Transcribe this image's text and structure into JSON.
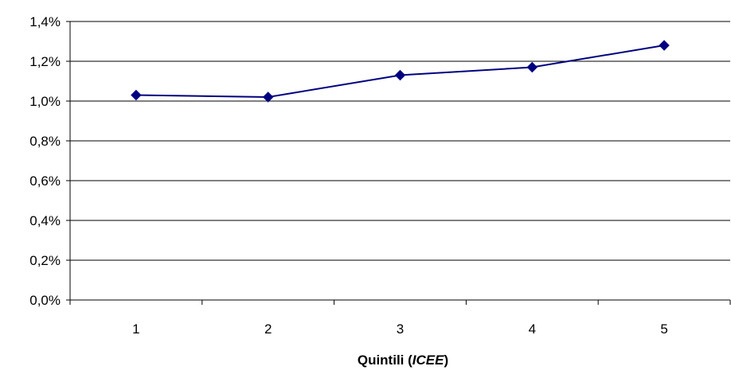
{
  "chart_data": {
    "type": "line",
    "title": "",
    "xlabel": "Quintili (ICEE)",
    "xlabel_parts": {
      "prefix": "Quintili (",
      "emphasis": "ICEE",
      "suffix": ")"
    },
    "ylabel": "",
    "categories": [
      "1",
      "2",
      "3",
      "4",
      "5"
    ],
    "series": [
      {
        "values": [
          1.03,
          1.02,
          1.13,
          1.17,
          1.28
        ]
      }
    ],
    "y_unit": "%",
    "ylim": [
      0,
      1.4
    ],
    "y_ticks": [
      0.0,
      0.2,
      0.4,
      0.6,
      0.8,
      1.0,
      1.2,
      1.4
    ],
    "y_tick_labels": [
      "0,0%",
      "0,2%",
      "0,4%",
      "0,6%",
      "0,8%",
      "1,0%",
      "1,2%",
      "1,4%"
    ],
    "grid": "horizontal",
    "legend": "none",
    "line_color": "#000080",
    "marker": "diamond"
  }
}
